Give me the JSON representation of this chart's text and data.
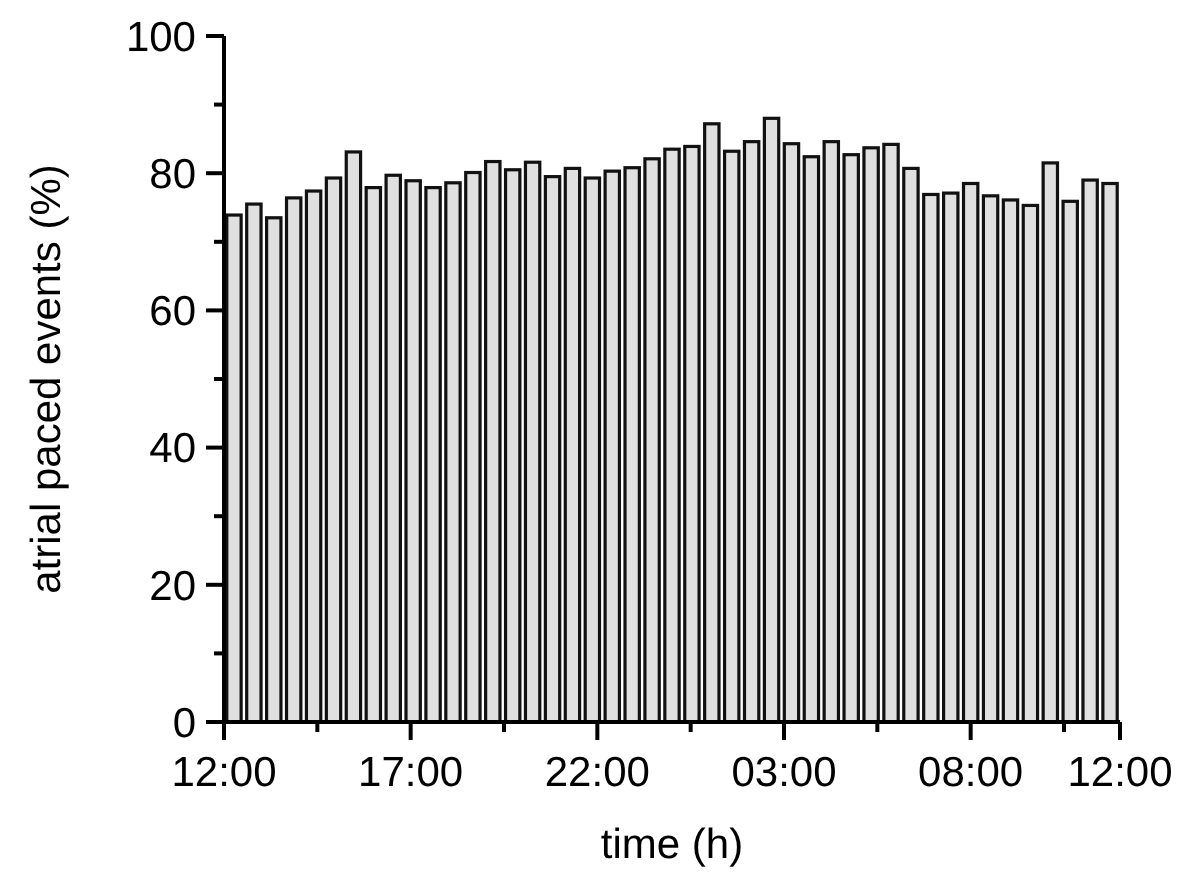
{
  "chart_data": {
    "type": "bar",
    "xlabel": "time (h)",
    "ylabel": "atrial paced events (%)",
    "x": [
      "2000-01-01T12:16",
      "2000-01-01T12:48",
      "2000-01-01T13:20",
      "2000-01-01T13:52",
      "2000-01-01T14:24",
      "2000-01-01T14:56",
      "2000-01-01T15:28",
      "2000-01-01T16:00",
      "2000-01-01T16:32",
      "2000-01-01T17:04",
      "2000-01-01T17:36",
      "2000-01-01T18:08",
      "2000-01-01T18:40",
      "2000-01-01T19:12",
      "2000-01-01T19:44",
      "2000-01-01T20:16",
      "2000-01-01T20:48",
      "2000-01-01T21:20",
      "2000-01-01T21:52",
      "2000-01-01T22:24",
      "2000-01-01T22:56",
      "2000-01-01T23:28",
      "2000-01-02T00:00",
      "2000-01-02T00:32",
      "2000-01-02T01:04",
      "2000-01-02T01:36",
      "2000-01-02T02:08",
      "2000-01-02T02:40",
      "2000-01-02T03:12",
      "2000-01-02T03:44",
      "2000-01-02T04:16",
      "2000-01-02T04:48",
      "2000-01-02T05:20",
      "2000-01-02T05:52",
      "2000-01-02T06:24",
      "2000-01-02T06:56",
      "2000-01-02T07:28",
      "2000-01-02T08:00",
      "2000-01-02T08:32",
      "2000-01-02T09:04",
      "2000-01-02T09:36",
      "2000-01-02T10:08",
      "2000-01-02T10:40",
      "2000-01-02T11:12",
      "2000-01-02T11:44"
    ],
    "values": [
      73.9,
      75.5,
      73.5,
      76.4,
      77.4,
      79.3,
      83.1,
      77.9,
      79.7,
      78.9,
      77.9,
      78.6,
      80.1,
      81.7,
      80.5,
      81.6,
      79.5,
      80.7,
      79.3,
      80.3,
      80.8,
      82.1,
      83.5,
      83.9,
      87.2,
      83.2,
      84.6,
      88.0,
      84.3,
      82.4,
      84.6,
      82.7,
      83.7,
      84.2,
      80.7,
      76.9,
      77.1,
      78.5,
      76.7,
      76.1,
      75.3,
      81.5,
      75.9,
      79.0,
      78.5
    ],
    "color": "#e0e0e0",
    "xlim": [
      "2000-01-01T12:00",
      "2000-01-02T12:00"
    ],
    "xticks": [
      {
        "value": "2000-01-01T12:00",
        "label": "12:00"
      },
      {
        "value": "2000-01-01T14:30",
        "label": null
      },
      {
        "value": "2000-01-01T17:00",
        "label": "17:00"
      },
      {
        "value": "2000-01-01T19:30",
        "label": null
      },
      {
        "value": "2000-01-01T22:00",
        "label": "22:00"
      },
      {
        "value": "2000-01-02T00:30",
        "label": null
      },
      {
        "value": "2000-01-02T03:00",
        "label": "03:00"
      },
      {
        "value": "2000-01-02T05:30",
        "label": null
      },
      {
        "value": "2000-01-02T08:00",
        "label": "08:00"
      },
      {
        "value": "2000-01-02T10:30",
        "label": null
      },
      {
        "value": "2000-01-02T12:00",
        "label": "12:00"
      }
    ],
    "ylim": [
      0,
      100
    ],
    "yticks": [
      0,
      {
        "value": 10,
        "label": null
      },
      20,
      {
        "value": 30,
        "label": null
      },
      40,
      {
        "value": 50,
        "label": null
      },
      60,
      {
        "value": 70,
        "label": null
      },
      80,
      {
        "value": 90,
        "label": null
      },
      100
    ],
    "grid": false
  }
}
